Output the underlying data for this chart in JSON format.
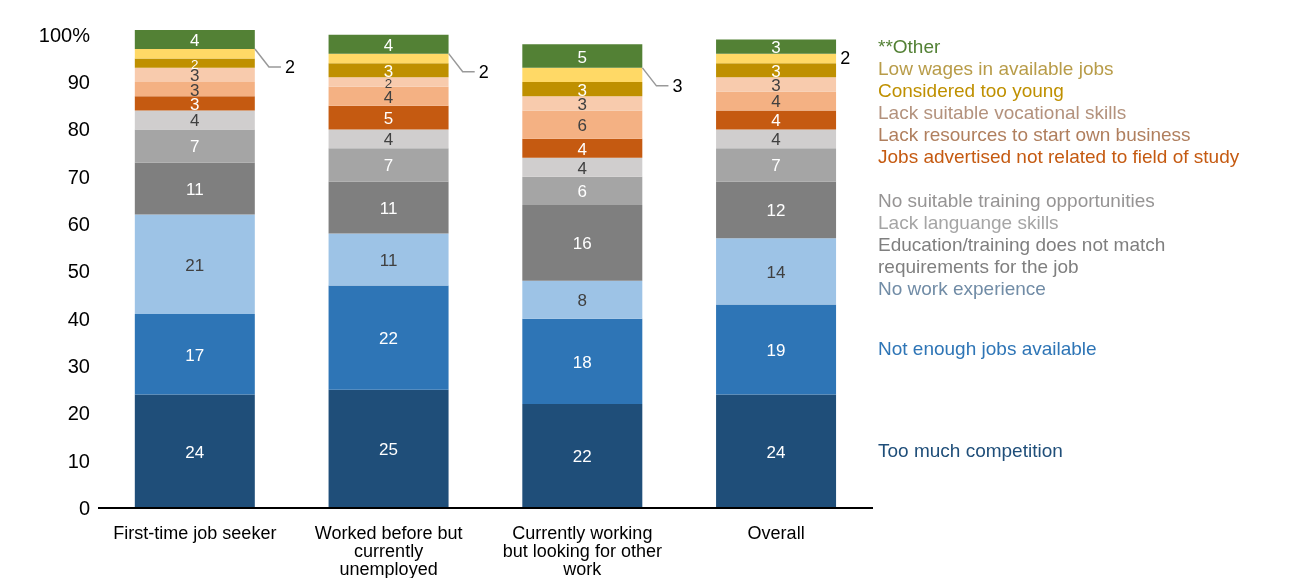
{
  "chart_data": {
    "type": "bar",
    "stacked": true,
    "legend": "right",
    "grid": false,
    "categories": [
      "First-time job seeker",
      "Worked before but currently unemployed",
      "Currently working but looking for other work",
      "Overall"
    ],
    "ylim": [
      0,
      101
    ],
    "yticks": [
      0,
      10,
      20,
      30,
      40,
      50,
      60,
      70,
      80,
      90,
      {
        "value": 100,
        "label": "100%"
      }
    ],
    "series": [
      {
        "name": "Too much competition",
        "color": "#1f4e79",
        "values": [
          24,
          25,
          22,
          24
        ],
        "value_labels": [
          "24",
          "25",
          "22",
          "24"
        ]
      },
      {
        "name": "Not enough jobs available",
        "color": "#2e75b6",
        "values": [
          17,
          22,
          18,
          19
        ],
        "value_labels": [
          "17",
          "22",
          "18",
          "19"
        ]
      },
      {
        "name": "No work experience",
        "color": "#9dc3e6",
        "values": [
          21,
          11,
          8,
          14
        ],
        "value_labels": [
          "21",
          "11",
          "8",
          "14"
        ]
      },
      {
        "name": "Education/training does not match requirements for the job",
        "color": "#7f7f7f",
        "values": [
          11,
          11,
          16,
          12
        ],
        "value_labels": [
          "11",
          "11",
          "16",
          "12"
        ]
      },
      {
        "name": "Lack languange skills",
        "color": "#a5a5a5",
        "values": [
          7,
          7,
          6,
          7
        ],
        "value_labels": [
          "7",
          "7",
          "6",
          "7"
        ]
      },
      {
        "name": "No suitable training opportunities",
        "color": "#d0cece",
        "values": [
          4,
          4,
          4,
          4
        ],
        "value_labels": [
          "4",
          "4",
          "4",
          "4"
        ]
      },
      {
        "name": "Jobs advertised not related to field of study",
        "color": "#c55a11",
        "values": [
          3,
          5,
          4,
          4
        ],
        "value_labels": [
          "3",
          "5",
          "4",
          "4"
        ]
      },
      {
        "name": "Lack resources to start own business",
        "color": "#f4b183",
        "values": [
          3,
          4,
          6,
          4
        ],
        "value_labels": [
          "3",
          "4",
          "6",
          "4"
        ]
      },
      {
        "name": "Lack suitable vocational skills",
        "color": "#f8cbad",
        "values": [
          3,
          2,
          3,
          3
        ],
        "value_labels": [
          "3",
          "2",
          "3",
          "3"
        ]
      },
      {
        "name": "Considered too young",
        "color": "#bf9000",
        "values": [
          2,
          3,
          3,
          3
        ],
        "value_labels": [
          "2",
          "3",
          "3",
          "3"
        ]
      },
      {
        "name": "Low wages in available jobs",
        "color": "#ffd966",
        "values": [
          2,
          2,
          3,
          2
        ],
        "value_labels": [
          null,
          null,
          null,
          null
        ]
      },
      {
        "name": "**Other",
        "color": "#538135",
        "values": [
          4,
          4,
          5,
          3
        ],
        "value_labels": [
          "4",
          "4",
          "5",
          "3"
        ]
      }
    ],
    "annotations": [
      "2",
      "2",
      "3",
      "2"
    ]
  }
}
